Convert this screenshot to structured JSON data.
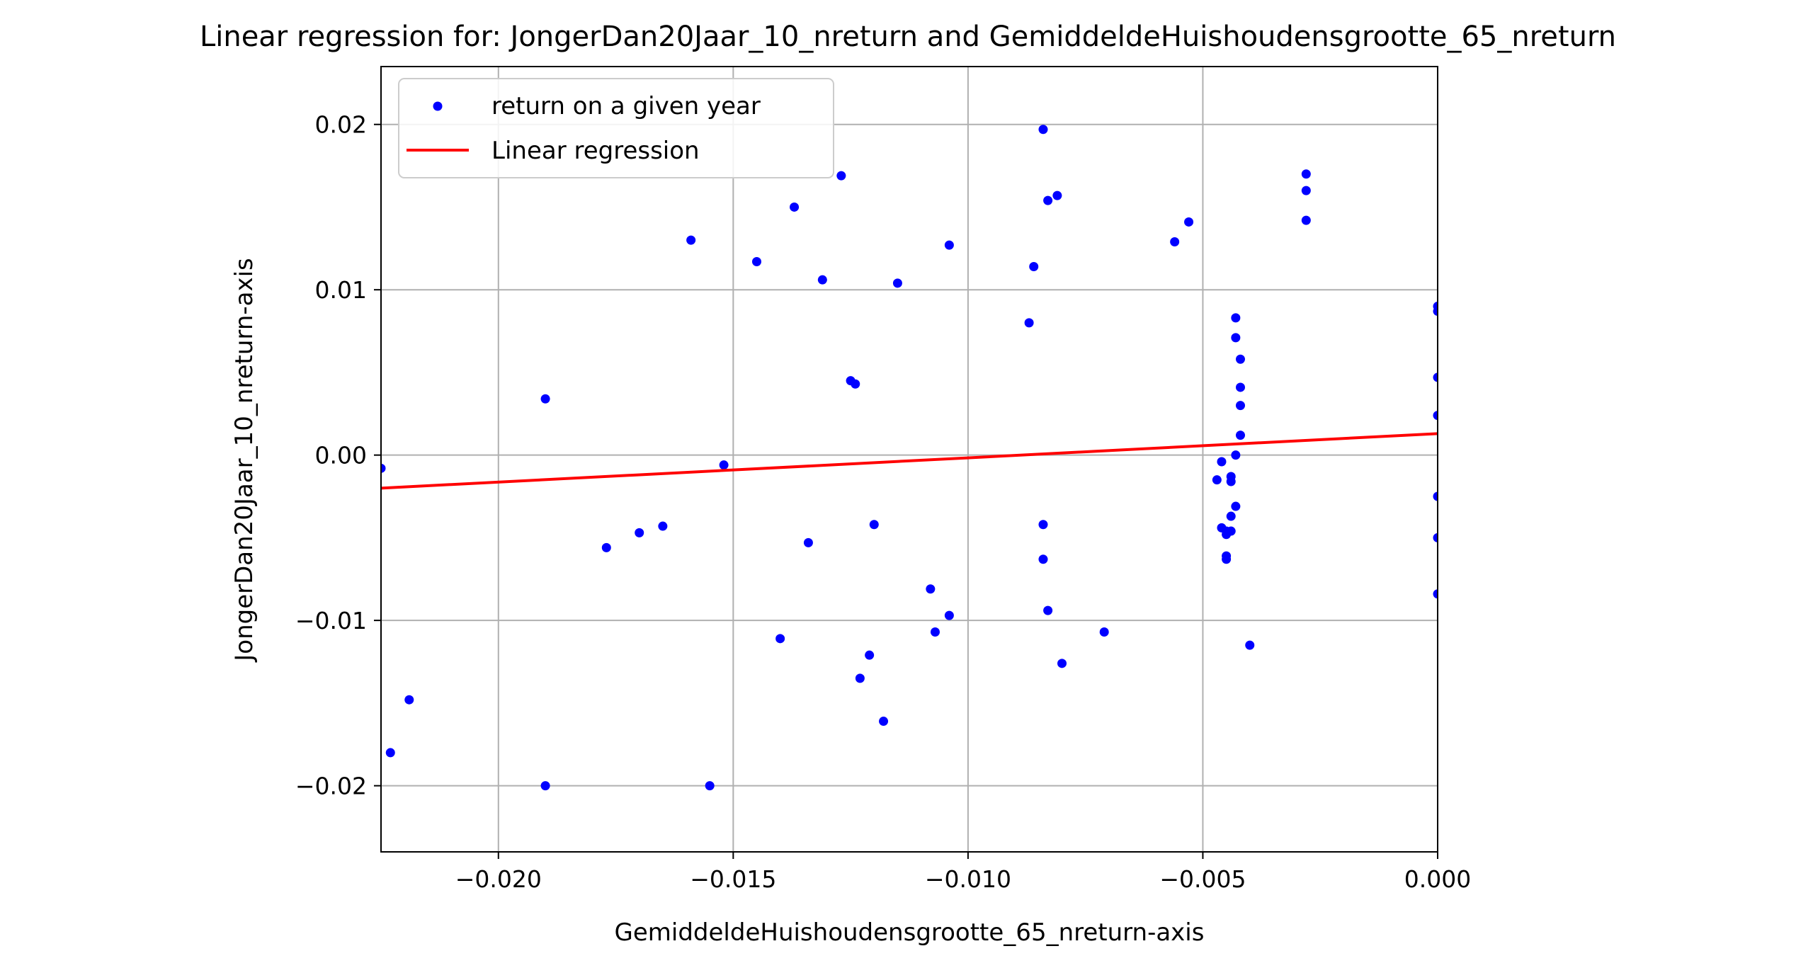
{
  "chart_data": {
    "type": "scatter",
    "title": "Linear regression for: JongerDan20Jaar_10_nreturn and GemiddeldeHuishoudensgrootte_65_nreturn",
    "xlabel": "GemiddeldeHuishoudensgrootte_65_nreturn-axis",
    "ylabel": "JongerDan20Jaar_10_nreturn-axis",
    "xlim": [
      -0.0225,
      0.0
    ],
    "ylim": [
      -0.024,
      0.0235
    ],
    "x_ticks": [
      -0.02,
      -0.015,
      -0.01,
      -0.005,
      0.0
    ],
    "x_tick_labels": [
      "−0.020",
      "−0.015",
      "−0.010",
      "−0.005",
      "0.000"
    ],
    "y_ticks": [
      -0.02,
      -0.01,
      0.0,
      0.01,
      0.02
    ],
    "y_tick_labels": [
      "−0.02",
      "−0.01",
      "0.00",
      "0.01",
      "0.02"
    ],
    "grid": true,
    "legend_position": "upper-left",
    "series": [
      {
        "name": "return on a given year",
        "kind": "scatter",
        "color": "#0000ff",
        "points": [
          [
            -0.0225,
            -0.0008
          ],
          [
            -0.0223,
            -0.018
          ],
          [
            -0.0219,
            -0.0148
          ],
          [
            -0.019,
            0.0034
          ],
          [
            -0.019,
            -0.02
          ],
          [
            -0.0177,
            -0.0056
          ],
          [
            -0.017,
            -0.0047
          ],
          [
            -0.0165,
            -0.0043
          ],
          [
            -0.0159,
            0.013
          ],
          [
            -0.0155,
            -0.02
          ],
          [
            -0.0152,
            -0.0006
          ],
          [
            -0.0145,
            0.0117
          ],
          [
            -0.014,
            -0.0111
          ],
          [
            -0.0137,
            0.015
          ],
          [
            -0.0134,
            -0.0053
          ],
          [
            -0.0131,
            0.0106
          ],
          [
            -0.0127,
            0.0169
          ],
          [
            -0.0125,
            0.0045
          ],
          [
            -0.0124,
            0.0043
          ],
          [
            -0.0123,
            -0.0135
          ],
          [
            -0.0121,
            -0.0121
          ],
          [
            -0.012,
            -0.0042
          ],
          [
            -0.0118,
            -0.0161
          ],
          [
            -0.0115,
            0.0104
          ],
          [
            -0.0108,
            -0.0081
          ],
          [
            -0.0107,
            -0.0107
          ],
          [
            -0.0104,
            0.0127
          ],
          [
            -0.0104,
            -0.0097
          ],
          [
            -0.0087,
            0.008
          ],
          [
            -0.0086,
            0.0114
          ],
          [
            -0.0084,
            0.0197
          ],
          [
            -0.0084,
            -0.0042
          ],
          [
            -0.0084,
            -0.0063
          ],
          [
            -0.0083,
            0.0154
          ],
          [
            -0.0083,
            -0.0094
          ],
          [
            -0.0081,
            0.0157
          ],
          [
            -0.008,
            -0.0126
          ],
          [
            -0.0071,
            -0.0107
          ],
          [
            -0.0056,
            0.0129
          ],
          [
            -0.0053,
            0.0141
          ],
          [
            -0.0047,
            -0.0015
          ],
          [
            -0.0046,
            -0.0004
          ],
          [
            -0.0046,
            -0.0044
          ],
          [
            -0.0045,
            -0.0046
          ],
          [
            -0.0045,
            -0.0061
          ],
          [
            -0.0045,
            -0.0063
          ],
          [
            -0.0045,
            -0.0048
          ],
          [
            -0.0044,
            -0.0037
          ],
          [
            -0.0044,
            -0.0016
          ],
          [
            -0.0044,
            -0.0013
          ],
          [
            -0.0044,
            -0.0046
          ],
          [
            -0.0043,
            0.0
          ],
          [
            -0.0043,
            -0.0031
          ],
          [
            -0.0043,
            0.0083
          ],
          [
            -0.0043,
            0.0071
          ],
          [
            -0.0042,
            0.0058
          ],
          [
            -0.0042,
            0.0041
          ],
          [
            -0.0042,
            0.003
          ],
          [
            -0.0042,
            0.0012
          ],
          [
            -0.004,
            -0.0115
          ],
          [
            -0.0028,
            0.017
          ],
          [
            -0.0028,
            0.016
          ],
          [
            -0.0028,
            0.0142
          ],
          [
            0.0,
            0.009
          ],
          [
            0.0,
            0.0087
          ],
          [
            0.0,
            0.0047
          ],
          [
            0.0,
            0.0024
          ],
          [
            0.0,
            -0.0025
          ],
          [
            0.0,
            -0.005
          ],
          [
            0.0,
            -0.0084
          ]
        ]
      },
      {
        "name": "Linear regression",
        "kind": "line",
        "color": "#ff0000",
        "x": [
          -0.0225,
          0.0
        ],
        "y": [
          -0.002,
          0.0013
        ]
      }
    ]
  }
}
